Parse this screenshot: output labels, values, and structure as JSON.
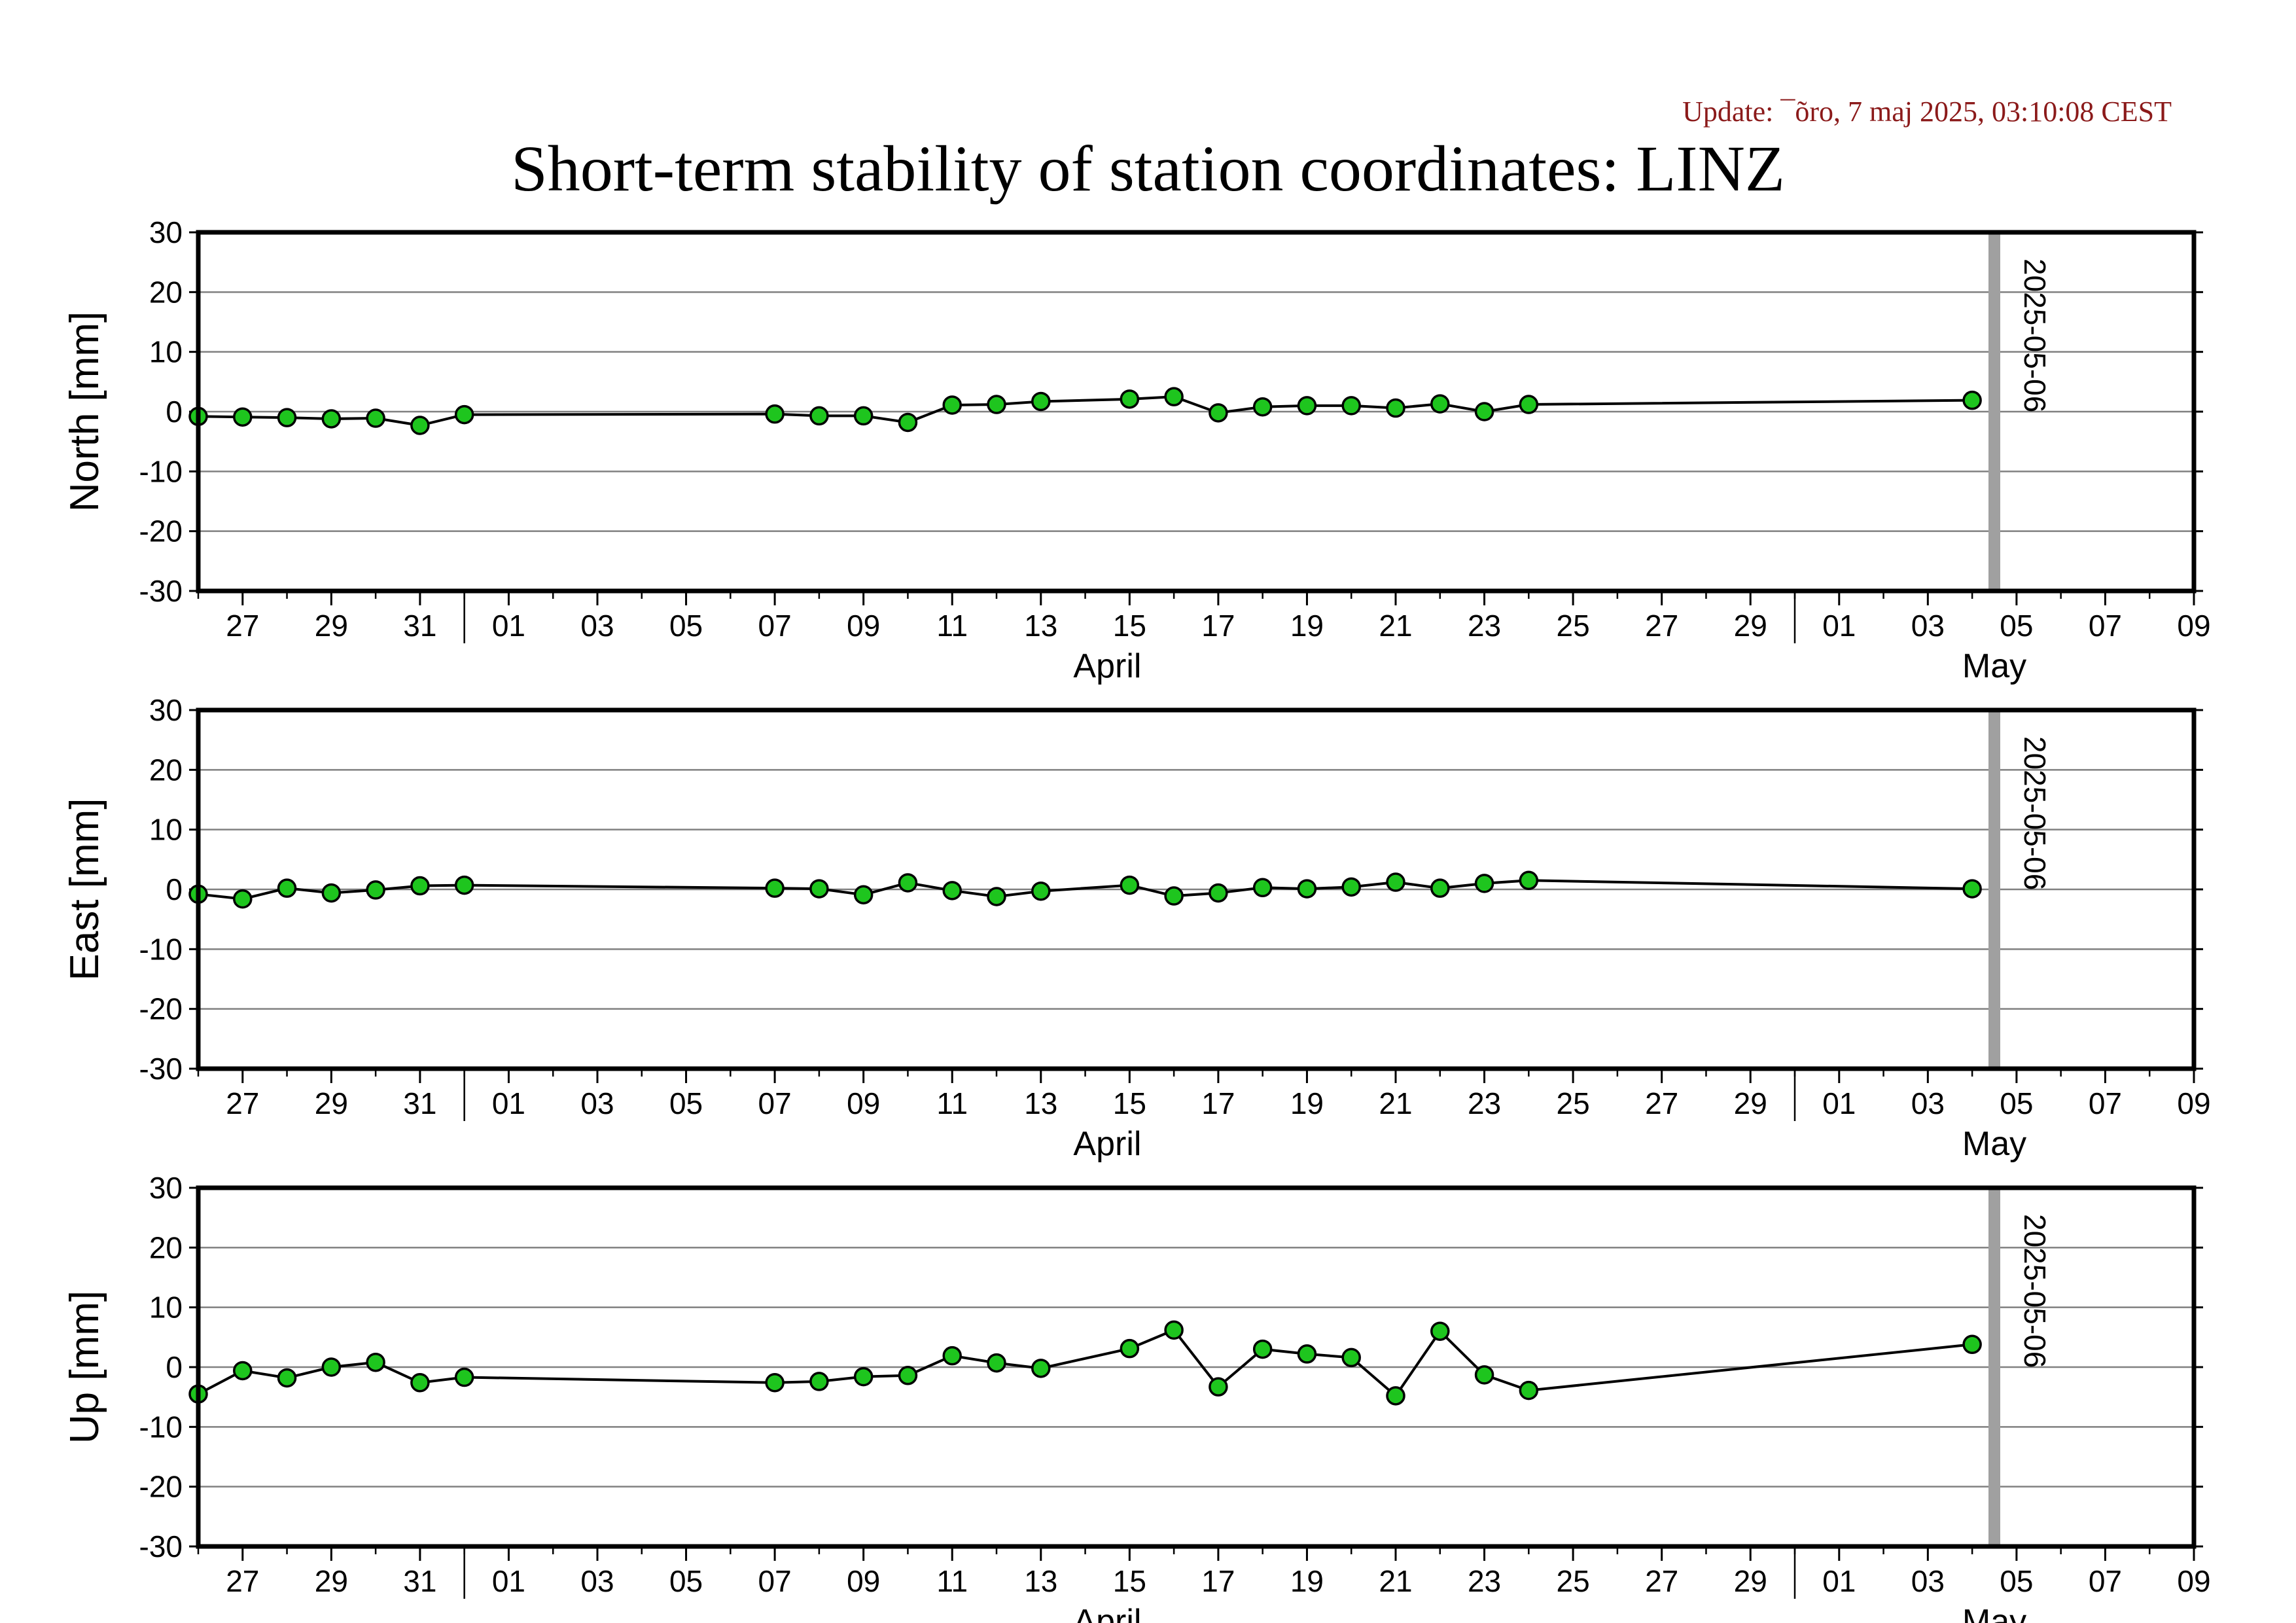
{
  "update_text": "Update: ¯õro, 7 maj 2025, 03:10:08 CEST",
  "title": "Short-term stability of station coordinates: LINZ",
  "colors": {
    "marker_fill": "#1ec51e",
    "line": "#000000",
    "grid": "#808080",
    "marker_line": "#3d5a1f",
    "date_bar": "#a0a0a0"
  },
  "chart_data": [
    {
      "type": "line",
      "ylabel": "North [mm]",
      "ylim": [
        -30,
        30
      ],
      "yticks": [
        -30,
        -20,
        -10,
        0,
        10,
        20,
        30
      ],
      "xlim": [
        "2025-03-26",
        "2025-05-10"
      ],
      "x_day_ticks": [
        "27",
        "29",
        "31",
        "01",
        "03",
        "05",
        "07",
        "09",
        "11",
        "13",
        "15",
        "17",
        "19",
        "21",
        "23",
        "25",
        "27",
        "29",
        "01",
        "03",
        "05",
        "07",
        "09"
      ],
      "x_month_labels": [
        "April",
        "May"
      ],
      "grid": true,
      "marker_date": "2025-05-06",
      "series": [
        {
          "x": [
            "2025-03-26",
            "2025-03-27",
            "2025-03-28",
            "2025-03-29",
            "2025-03-30",
            "2025-03-31",
            "2025-04-01",
            "2025-04-08",
            "2025-04-09",
            "2025-04-10",
            "2025-04-11",
            "2025-04-12",
            "2025-04-13",
            "2025-04-14",
            "2025-04-16",
            "2025-04-17",
            "2025-04-18",
            "2025-04-19",
            "2025-04-20",
            "2025-04-21",
            "2025-04-22",
            "2025-04-23",
            "2025-04-24",
            "2025-04-25",
            "2025-05-05"
          ],
          "y": [
            -0.8,
            -0.9,
            -1.0,
            -1.2,
            -1.1,
            -2.3,
            -0.5,
            -0.4,
            -0.7,
            -0.7,
            -1.8,
            1.1,
            1.2,
            1.7,
            2.1,
            2.5,
            -0.2,
            0.8,
            1.0,
            1.0,
            0.6,
            1.3,
            0.0,
            1.2,
            1.9
          ]
        }
      ]
    },
    {
      "type": "line",
      "ylabel": "East [mm]",
      "ylim": [
        -30,
        30
      ],
      "yticks": [
        -30,
        -20,
        -10,
        0,
        10,
        20,
        30
      ],
      "xlim": [
        "2025-03-26",
        "2025-05-10"
      ],
      "x_day_ticks": [
        "27",
        "29",
        "31",
        "01",
        "03",
        "05",
        "07",
        "09",
        "11",
        "13",
        "15",
        "17",
        "19",
        "21",
        "23",
        "25",
        "27",
        "29",
        "01",
        "03",
        "05",
        "07",
        "09"
      ],
      "x_month_labels": [
        "April",
        "May"
      ],
      "grid": true,
      "marker_date": "2025-05-06",
      "series": [
        {
          "x": [
            "2025-03-26",
            "2025-03-27",
            "2025-03-28",
            "2025-03-29",
            "2025-03-30",
            "2025-03-31",
            "2025-04-01",
            "2025-04-08",
            "2025-04-09",
            "2025-04-10",
            "2025-04-11",
            "2025-04-12",
            "2025-04-13",
            "2025-04-14",
            "2025-04-16",
            "2025-04-17",
            "2025-04-18",
            "2025-04-19",
            "2025-04-20",
            "2025-04-21",
            "2025-04-22",
            "2025-04-23",
            "2025-04-24",
            "2025-04-25",
            "2025-05-05"
          ],
          "y": [
            -0.8,
            -1.6,
            0.2,
            -0.6,
            -0.1,
            0.6,
            0.7,
            0.2,
            0.1,
            -0.9,
            1.1,
            -0.2,
            -1.2,
            -0.3,
            0.7,
            -1.1,
            -0.6,
            0.3,
            0.1,
            0.4,
            1.2,
            0.2,
            1.0,
            1.5,
            0.1
          ]
        }
      ]
    },
    {
      "type": "line",
      "ylabel": "Up [mm]",
      "ylim": [
        -30,
        30
      ],
      "yticks": [
        -30,
        -20,
        -10,
        0,
        10,
        20,
        30
      ],
      "xlim": [
        "2025-03-26",
        "2025-05-10"
      ],
      "x_day_ticks": [
        "27",
        "29",
        "31",
        "01",
        "03",
        "05",
        "07",
        "09",
        "11",
        "13",
        "15",
        "17",
        "19",
        "21",
        "23",
        "25",
        "27",
        "29",
        "01",
        "03",
        "05",
        "07",
        "09"
      ],
      "x_month_labels": [
        "April",
        "May"
      ],
      "grid": true,
      "marker_date": "2025-05-06",
      "series": [
        {
          "x": [
            "2025-03-26",
            "2025-03-27",
            "2025-03-28",
            "2025-03-29",
            "2025-03-30",
            "2025-03-31",
            "2025-04-01",
            "2025-04-08",
            "2025-04-09",
            "2025-04-10",
            "2025-04-11",
            "2025-04-12",
            "2025-04-13",
            "2025-04-14",
            "2025-04-16",
            "2025-04-17",
            "2025-04-18",
            "2025-04-19",
            "2025-04-20",
            "2025-04-21",
            "2025-04-22",
            "2025-04-23",
            "2025-04-24",
            "2025-04-25",
            "2025-05-05"
          ],
          "y": [
            -4.5,
            -0.6,
            -1.8,
            0.0,
            0.8,
            -2.6,
            -1.7,
            -2.6,
            -2.4,
            -1.6,
            -1.4,
            1.9,
            0.7,
            -0.2,
            3.1,
            6.2,
            -3.3,
            3.0,
            2.2,
            1.6,
            -4.8,
            6.0,
            -1.3,
            -3.9,
            3.8
          ]
        }
      ]
    }
  ]
}
